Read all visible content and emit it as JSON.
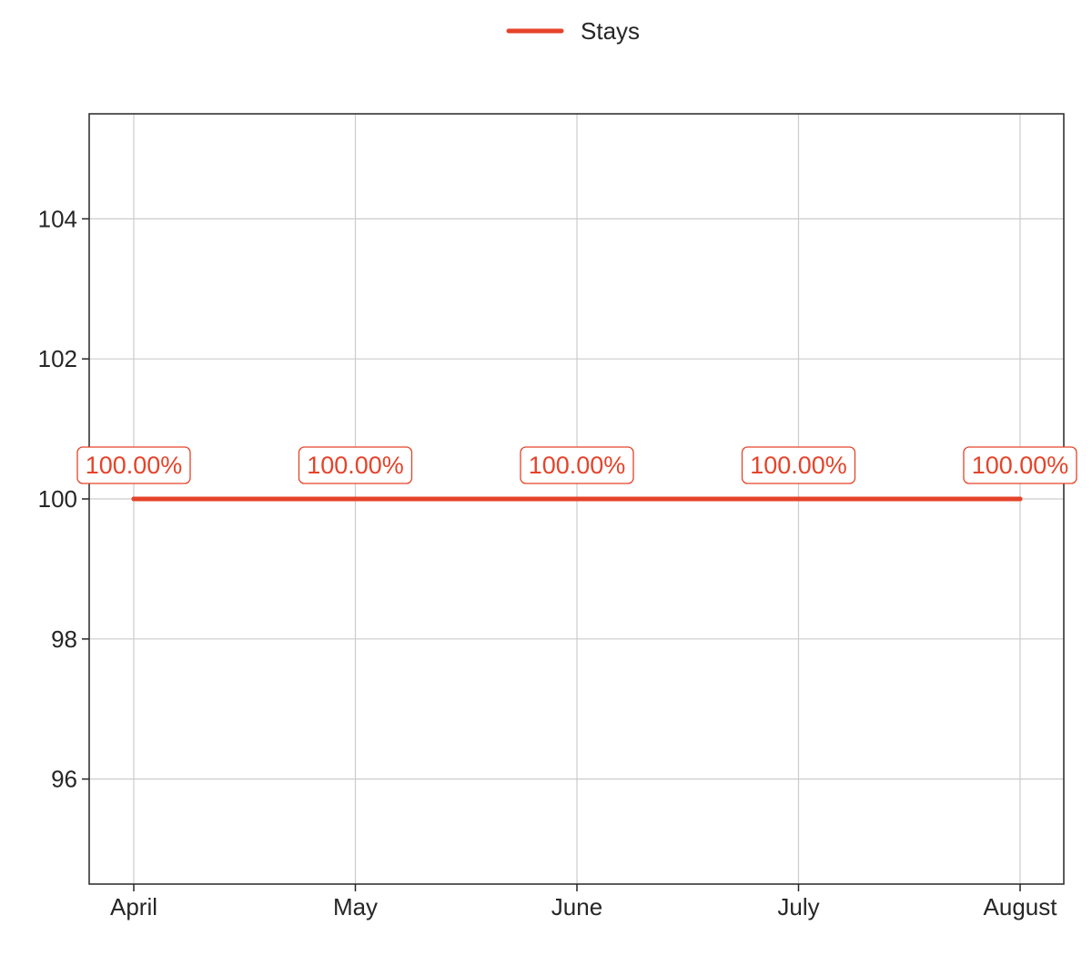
{
  "chart_data": {
    "type": "line",
    "categories": [
      "April",
      "May",
      "June",
      "July",
      "August"
    ],
    "series": [
      {
        "name": "Stays",
        "values": [
          100,
          100,
          100,
          100,
          100
        ],
        "labels": [
          "100.00%",
          "100.00%",
          "100.00%",
          "100.00%",
          "100.00%"
        ],
        "color": "#e5432a"
      }
    ],
    "title": "",
    "xlabel": "",
    "ylabel": "",
    "ylim": [
      94.5,
      105.5
    ],
    "yticks": [
      96,
      98,
      100,
      102,
      104
    ],
    "yticks_labels": [
      "96",
      "98",
      "100",
      "102",
      "104"
    ],
    "grid": true,
    "legend_position": "top-center"
  }
}
